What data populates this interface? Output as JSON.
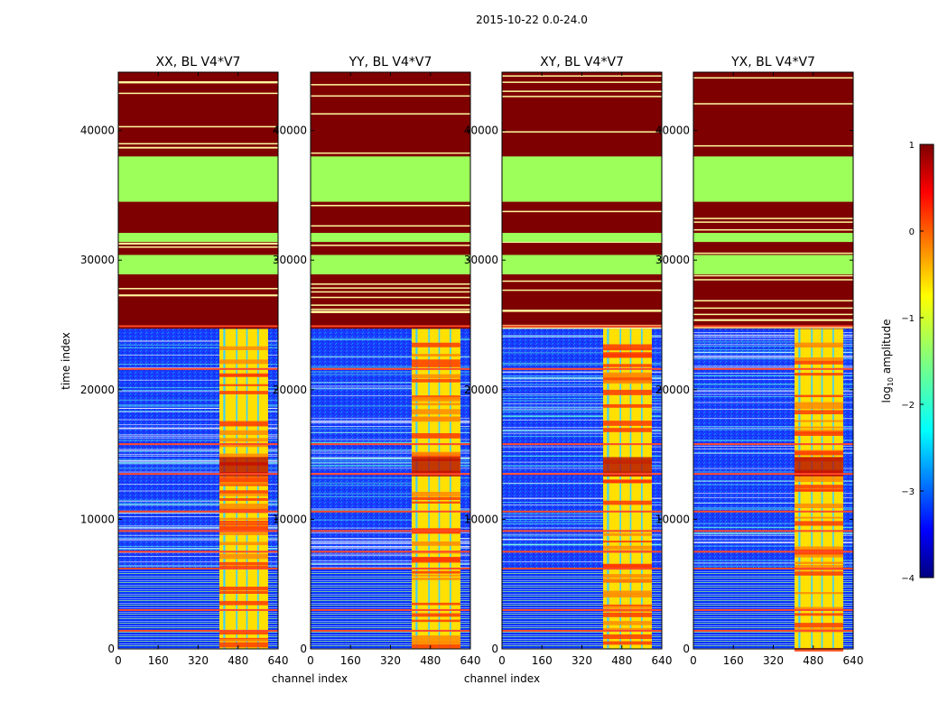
{
  "suptitle": "2015-10-22 0.0-24.0",
  "chart_data": [
    {
      "type": "heatmap",
      "title": "XX, BL V4*V7",
      "xlabel": "channel index",
      "ylabel": "time index",
      "xlim": [
        0,
        640
      ],
      "ylim": [
        0,
        44500
      ],
      "xticks": [
        "0",
        "160",
        "320",
        "480",
        "640"
      ],
      "yticks": [
        "0",
        "10000",
        "20000",
        "30000",
        "40000"
      ],
      "brightband_channels": [
        [
          405,
          600
        ]
      ]
    },
    {
      "type": "heatmap",
      "title": "YY, BL V4*V7",
      "xlabel": "channel index",
      "ylabel": "",
      "xlim": [
        0,
        640
      ],
      "ylim": [
        0,
        44500
      ],
      "xticks": [
        "0",
        "160",
        "320",
        "480",
        "640"
      ],
      "yticks": [
        "0",
        "10000",
        "20000",
        "30000",
        "40000"
      ],
      "brightband_channels": [
        [
          405,
          600
        ]
      ]
    },
    {
      "type": "heatmap",
      "title": "XY, BL V4*V7",
      "xlabel": "",
      "ylabel": "",
      "xlim": [
        0,
        640
      ],
      "ylim": [
        0,
        44500
      ],
      "xticks": [
        "0",
        "160",
        "320",
        "480",
        "640"
      ],
      "yticks": [
        "0",
        "10000",
        "20000",
        "30000",
        "40000"
      ],
      "brightband_channels": [
        [
          405,
          600
        ]
      ]
    },
    {
      "type": "heatmap",
      "title": "YX, BL V4*V7",
      "xlabel": "",
      "ylabel": "",
      "xlim": [
        0,
        640
      ],
      "ylim": [
        0,
        44500
      ],
      "xticks": [
        "0",
        "160",
        "320",
        "480",
        "640"
      ],
      "yticks": [
        "0",
        "10000",
        "20000",
        "30000",
        "40000"
      ],
      "brightband_channels": [
        [
          405,
          600
        ]
      ]
    }
  ],
  "colorbar": {
    "label": "log10 amplitude",
    "label_text": "log",
    "label_sub": "10",
    "label_rest": " amplitude",
    "range": [
      -4,
      1
    ],
    "ticks": [
      "1",
      "0",
      "−1",
      "−2",
      "−3",
      "−4"
    ]
  },
  "data_summary": {
    "saturated_rows": [
      [
        24700,
        44500
      ]
    ],
    "green_blocks": [
      [
        28900,
        30400
      ],
      [
        31400,
        32100
      ],
      [
        34500,
        38000
      ]
    ],
    "red_lines": [
      1400,
      3000,
      6200,
      7500,
      9100,
      10600,
      13500,
      15800,
      21600,
      24900
    ]
  }
}
